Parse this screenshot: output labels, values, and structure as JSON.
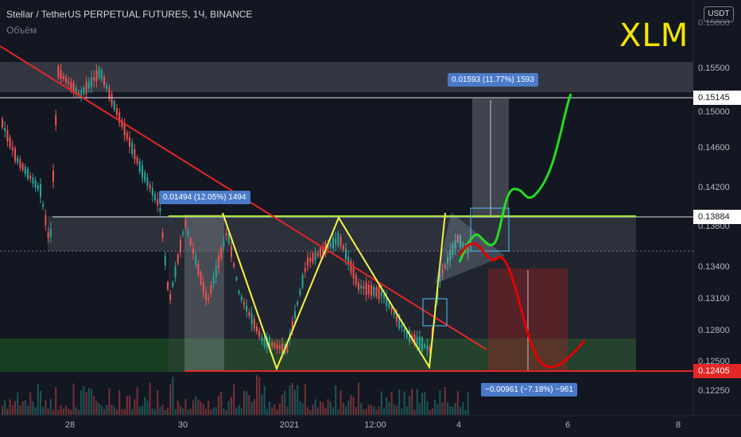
{
  "header": {
    "symbol_line": "Stellar / TetherUS PERPETUAL FUTURES, 1Ч, BINANCE",
    "volume_label": "Объём"
  },
  "overlay_title": "XLM",
  "currency_button": "USDT",
  "price_axis": {
    "labels": [
      "0.15500",
      "0.15000",
      "0.14600",
      "0.14200",
      "0.13800",
      "0.13400",
      "0.13100",
      "0.12800",
      "0.12500",
      "0.12250"
    ],
    "top_partial": "0.15800"
  },
  "price_tags": {
    "upper_line": "0.15145",
    "neckline": "0.13884",
    "support": "0.12405"
  },
  "time_axis": {
    "labels": [
      "28",
      "30",
      "2021",
      "12:00",
      "4",
      "6",
      "8"
    ]
  },
  "measure_labels": {
    "left": "0.01494 (12.05%) 1494",
    "up": "0.01593 (11.77%) 1593",
    "down": "−0.00961 (−7.18%) −961"
  },
  "colors": {
    "background": "#131722",
    "bullish": "#26a69a",
    "bearish": "#ef5350",
    "trendline": "#e32626",
    "pattern": "#f5f542",
    "projection_up": "#22dd22",
    "projection_down": "#e60000",
    "neckline": "#a3e635",
    "title": "#f5e600",
    "measure_label_bg": "#4a7ac8"
  }
}
